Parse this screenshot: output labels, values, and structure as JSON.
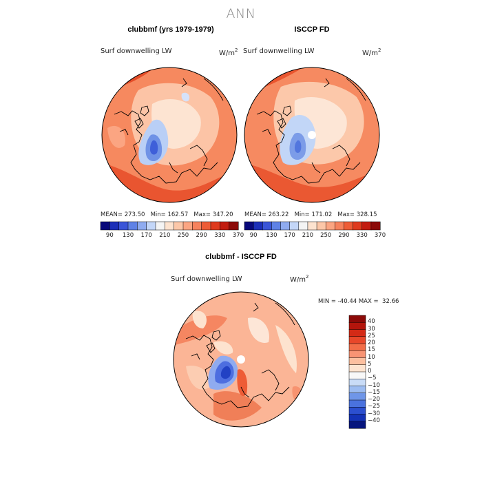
{
  "main_title": "ANN",
  "panels": [
    {
      "title": "clubbmf (yrs 1979-1979)",
      "variable": "Surf downwelling LW",
      "units_base": "W/m",
      "units_exp": "2",
      "stats": {
        "mean_label": "MEAN=",
        "mean": "273.50",
        "min_label": "Min=",
        "min": "162.57",
        "max_label": "Max=",
        "max": "347.20"
      }
    },
    {
      "title": "ISCCP FD",
      "variable": "Surf downwelling LW",
      "units_base": "W/m",
      "units_exp": "2",
      "stats": {
        "mean_label": "MEAN=",
        "mean": "263.22",
        "min_label": "Min=",
        "min": "171.02",
        "max_label": "Max=",
        "max": "328.15"
      }
    }
  ],
  "colorbar_top": {
    "labels": [
      "90",
      "130",
      "170",
      "210",
      "250",
      "290",
      "330",
      "370"
    ],
    "colors": [
      "#08087a",
      "#1c2fb8",
      "#3a55d8",
      "#5f82e6",
      "#8fabf0",
      "#c3d6f8",
      "#f4f4f4",
      "#fde3cf",
      "#fcc7a8",
      "#fba582",
      "#f6825d",
      "#ee5c36",
      "#df3a1d",
      "#c21c10",
      "#8c0a08"
    ]
  },
  "difference": {
    "title": "clubbmf - ISCCP FD",
    "variable": "Surf downwelling LW",
    "units_base": "W/m",
    "units_exp": "2",
    "min_label": "MIN =",
    "min": "-40.44",
    "max_label": "MAX =",
    "max": "32.66"
  },
  "colorbar_diff": {
    "labels": [
      "40",
      "30",
      "25",
      "20",
      "15",
      "10",
      "5",
      "0",
      "−5",
      "−10",
      "−15",
      "−20",
      "−25",
      "−30",
      "−40"
    ],
    "colors": [
      "#8c0a08",
      "#b4150c",
      "#d42a16",
      "#e8472a",
      "#f26d48",
      "#f89474",
      "#fcbf9f",
      "#fde3cf",
      "#f8f8f8",
      "#c9dcf7",
      "#9cbcf1",
      "#6f96e8",
      "#4a72de",
      "#2c4fcf",
      "#1432b6",
      "#06157e"
    ]
  }
}
